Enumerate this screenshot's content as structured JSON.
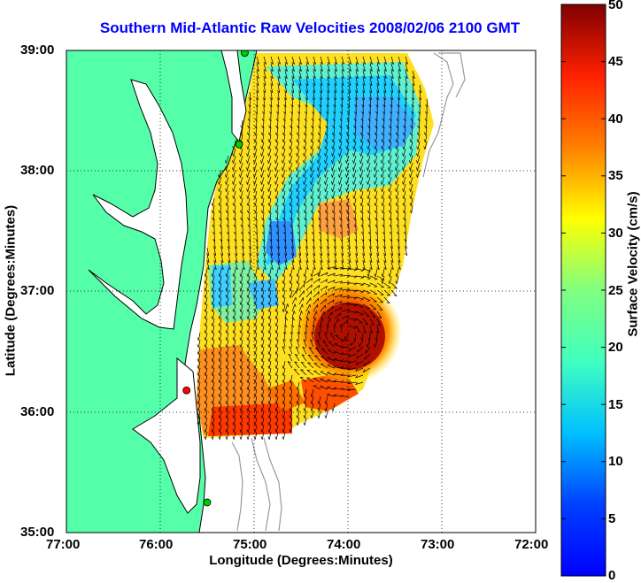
{
  "title": "Southern Mid-Atlantic Raw Velocities 2008/02/06 2100 GMT",
  "xlabel": "Longitude (Degrees:Minutes)",
  "ylabel": "Latitude (Degrees:Minutes)",
  "colorbar": {
    "label": "Surface Velocity (cm/s)",
    "ticks": [
      "0",
      "5",
      "10",
      "15",
      "20",
      "25",
      "30",
      "35",
      "40",
      "45",
      "50"
    ],
    "range": [
      0,
      50
    ],
    "colormap": "jet"
  },
  "map": {
    "x_ticks": [
      "77:00",
      "76:00",
      "75:00",
      "74:00",
      "73:00",
      "72:00"
    ],
    "y_ticks": [
      "35:00",
      "36:00",
      "37:00",
      "38:00",
      "39:00"
    ],
    "x_range": [
      -77,
      -72
    ],
    "y_range": [
      35,
      39
    ],
    "grid": "dotted",
    "land_color": "#55ffaa",
    "coast_color": "#000000",
    "bathymetry_color": "#9a9a9a",
    "arrow_color": "#000000",
    "stations": [
      {
        "lon": -75.1,
        "lat": 38.98,
        "color": "#00cc00"
      },
      {
        "lon": -75.16,
        "lat": 38.22,
        "color": "#00cc00"
      },
      {
        "lon": -75.72,
        "lat": 36.18,
        "color": "#ff0000"
      },
      {
        "lon": -75.5,
        "lat": 35.25,
        "color": "#00cc00"
      }
    ]
  }
}
